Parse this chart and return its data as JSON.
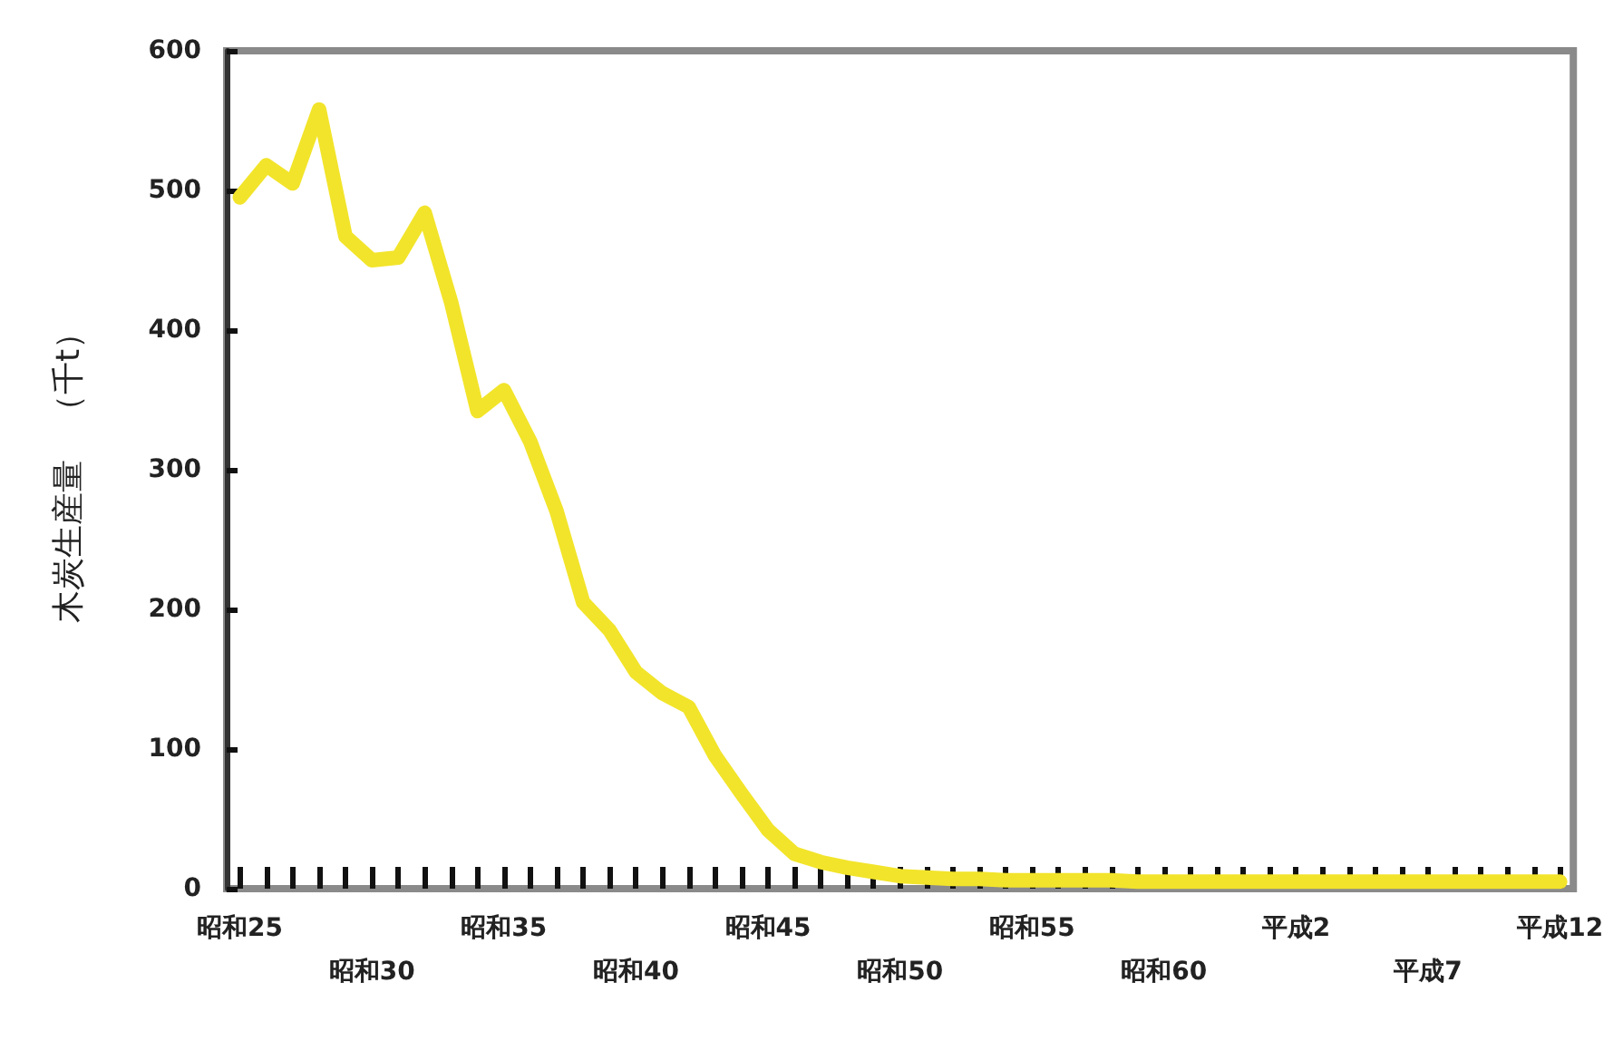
{
  "chart_data": {
    "type": "line",
    "ylabel": "木炭生産量　（千t）",
    "categories": [
      "昭和25",
      null,
      null,
      null,
      null,
      "昭和30",
      null,
      null,
      null,
      null,
      "昭和35",
      null,
      null,
      null,
      null,
      "昭和40",
      null,
      null,
      null,
      null,
      "昭和45",
      null,
      null,
      null,
      null,
      "昭和50",
      null,
      null,
      null,
      null,
      "昭和55",
      null,
      null,
      null,
      null,
      "昭和60",
      null,
      null,
      null,
      null,
      "平成2",
      null,
      null,
      null,
      null,
      "平成7",
      null,
      null,
      null,
      null,
      "平成12"
    ],
    "series": [
      {
        "color": "#f2e42a",
        "values": [
          495,
          518,
          505,
          558,
          467,
          450,
          452,
          484,
          420,
          342,
          357,
          320,
          270,
          205,
          185,
          155,
          140,
          130,
          95,
          68,
          42,
          25,
          19,
          15,
          12,
          9,
          8,
          7,
          7,
          6,
          6,
          6,
          6,
          6,
          5,
          5,
          5,
          5,
          5,
          5,
          5,
          5,
          5,
          5,
          5,
          5,
          5,
          5,
          5,
          5,
          5
        ]
      }
    ],
    "ylim": [
      0,
      600
    ],
    "yticks": [
      0,
      100,
      200,
      300,
      400,
      500,
      600
    ],
    "grid": false,
    "marker": "none",
    "line_style": "solid"
  }
}
